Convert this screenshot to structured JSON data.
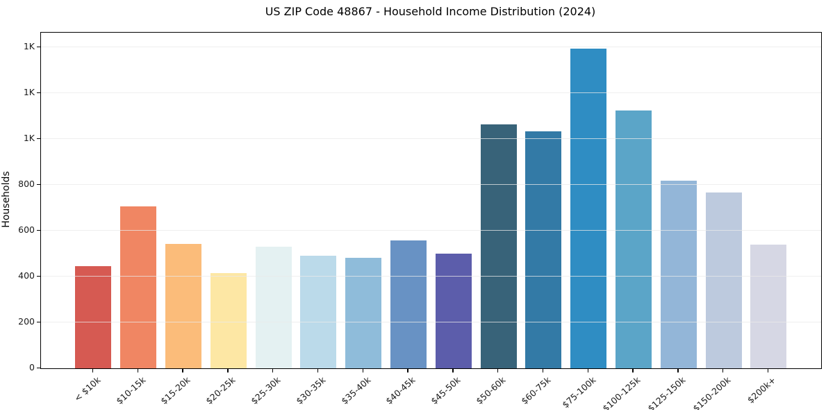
{
  "chart_data": {
    "type": "bar",
    "title": "US ZIP Code 48867 - Household Income Distribution (2024)",
    "xlabel": "",
    "ylabel": "Households",
    "categories": [
      "< $10k",
      "$10-15k",
      "$15-20k",
      "$20-25k",
      "$25-30k",
      "$30-35k",
      "$35-40k",
      "$40-45k",
      "$45-50k",
      "$50-60k",
      "$60-75k",
      "$75-100k",
      "$100-125k",
      "$125-150k",
      "$150-200k",
      "$200k+"
    ],
    "values": [
      445,
      706,
      543,
      417,
      530,
      491,
      482,
      558,
      500,
      1065,
      1035,
      1396,
      1124,
      820,
      768,
      541
    ],
    "bar_colors": [
      "#d65a52",
      "#f08663",
      "#fbbc7a",
      "#fde7a4",
      "#e4f1f2",
      "#bbdaea",
      "#8fbcda",
      "#6892c4",
      "#5c5dab",
      "#386379",
      "#337aa6",
      "#2f8dc3",
      "#5ba5c8",
      "#93b6d8",
      "#bdcade",
      "#d6d7e4"
    ],
    "yticks": {
      "values": [
        0,
        200,
        400,
        600,
        800,
        1000,
        1200,
        1400
      ],
      "labels": [
        "0",
        "200",
        "400",
        "600",
        "800",
        "1K",
        "1K",
        "1K"
      ]
    },
    "ylim": [
      0,
      1465
    ],
    "grid": "horizontal",
    "grid_color": "#e9e9e9",
    "spine_color": "#000000",
    "text_color": "#1a1a1a",
    "background": "#ffffff",
    "legend": "none",
    "x_tick_rotation": 42
  }
}
